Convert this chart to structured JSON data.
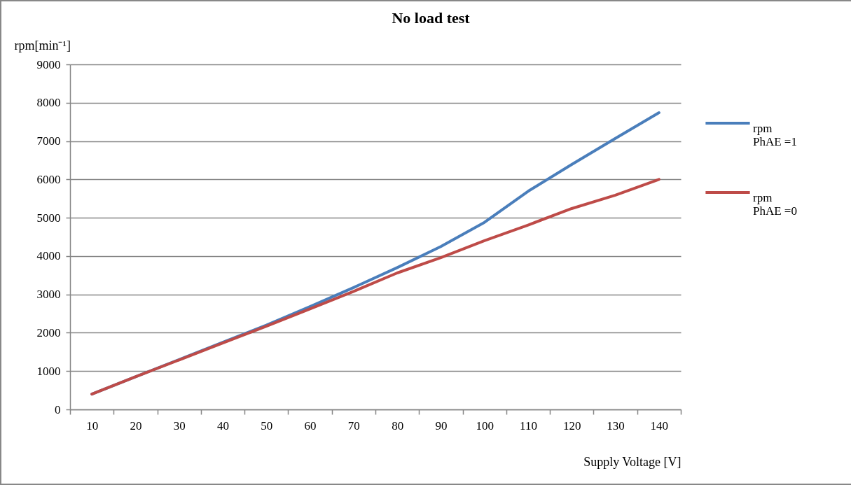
{
  "chart_data": {
    "type": "line",
    "title": "No load test",
    "xlabel": "Supply Voltage [V]",
    "ylabel": "rpm[min⁻¹]",
    "categories": [
      "10",
      "20",
      "30",
      "40",
      "50",
      "60",
      "70",
      "80",
      "90",
      "100",
      "110",
      "120",
      "130",
      "140"
    ],
    "series": [
      {
        "name": "rpm\nPhAE =1",
        "color": "#4a7ebb",
        "values": [
          400,
          850,
          1300,
          1750,
          2200,
          2680,
          3180,
          3700,
          4250,
          4880,
          5690,
          6390,
          7070,
          7740
        ]
      },
      {
        "name": "rpm\nPhAE =0",
        "color": "#be4b48",
        "values": [
          400,
          850,
          1290,
          1730,
          2170,
          2620,
          3080,
          3560,
          3960,
          4400,
          4810,
          5240,
          5590,
          6000
        ]
      }
    ],
    "ylim": [
      0,
      9000
    ],
    "yticks": [
      0,
      1000,
      2000,
      3000,
      4000,
      5000,
      6000,
      7000,
      8000,
      9000
    ],
    "grid": "y",
    "legend": "right"
  }
}
